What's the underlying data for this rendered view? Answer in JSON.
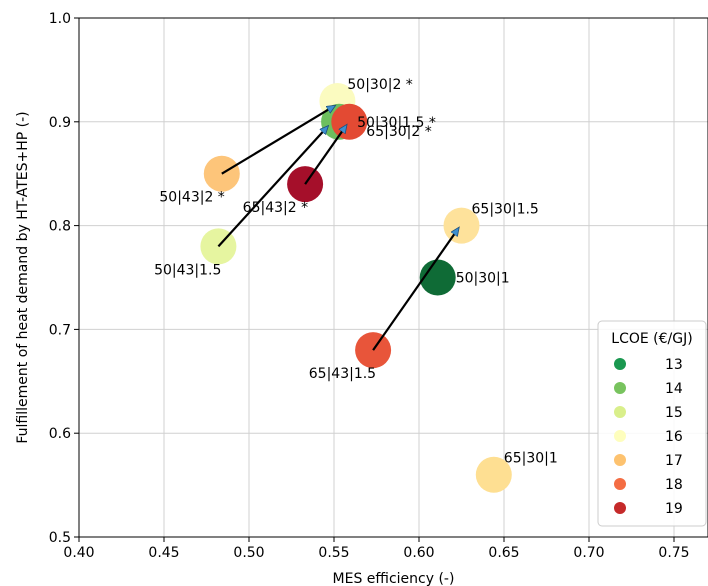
{
  "chart_data": {
    "type": "scatter",
    "xlabel": "MES efficiency (-)",
    "ylabel": "Fulfillement of heat demand by HT-ATES+HP (-)",
    "xlim": [
      0.4,
      0.77
    ],
    "ylim": [
      0.5,
      1.0
    ],
    "xticks": [
      0.4,
      0.45,
      0.5,
      0.55,
      0.6,
      0.65,
      0.7,
      0.75
    ],
    "yticks": [
      0.5,
      0.6,
      0.7,
      0.8,
      0.9,
      1.0
    ],
    "xtick_labels": [
      "0.40",
      "0.45",
      "0.50",
      "0.55",
      "0.60",
      "0.65",
      "0.70",
      "0.75"
    ],
    "ytick_labels": [
      "0.5",
      "0.6",
      "0.7",
      "0.8",
      "0.9",
      "1.0"
    ],
    "grid": true,
    "legend": {
      "title": "LCOE (€/GJ)",
      "placement": "lower-right",
      "entries": [
        {
          "label": "13",
          "color": "#1a9850"
        },
        {
          "label": "14",
          "color": "#78c35e"
        },
        {
          "label": "15",
          "color": "#d9ef8b"
        },
        {
          "label": "16",
          "color": "#fefebd"
        },
        {
          "label": "17",
          "color": "#fdc26f"
        },
        {
          "label": "18",
          "color": "#f46d43"
        },
        {
          "label": "19",
          "color": "#c52a2a"
        }
      ]
    },
    "points": [
      {
        "label": "50|43|2 *",
        "x": 0.484,
        "y": 0.85,
        "lcoe": 17,
        "color": "#fdc57a",
        "label_pos": "below-left"
      },
      {
        "label": "50|43|1.5",
        "x": 0.482,
        "y": 0.78,
        "lcoe": 15,
        "color": "#e6f5a0",
        "label_pos": "below-left"
      },
      {
        "label": "65|43|2 *",
        "x": 0.533,
        "y": 0.84,
        "lcoe": 19,
        "color": "#a50f2a",
        "label_pos": "below-left"
      },
      {
        "label": "50|30|2 *",
        "x": 0.552,
        "y": 0.92,
        "lcoe": 16,
        "color": "#fbfbc0",
        "label_pos": "above-right"
      },
      {
        "label": "50|30|1.5 *",
        "x": 0.553,
        "y": 0.9,
        "lcoe": 14,
        "color": "#6dbf5e",
        "label_pos": "right"
      },
      {
        "label": "65|30|2 *",
        "x": 0.559,
        "y": 0.9,
        "lcoe": 18,
        "color": "#e34a33",
        "label_pos": "below-right"
      },
      {
        "label": "65|30|1.5",
        "x": 0.625,
        "y": 0.8,
        "lcoe": 17,
        "color": "#fee29b",
        "label_pos": "above-right"
      },
      {
        "label": "50|30|1",
        "x": 0.611,
        "y": 0.75,
        "lcoe": 13,
        "color": "#0f6b36",
        "label_pos": "right"
      },
      {
        "label": "65|43|1.5",
        "x": 0.573,
        "y": 0.68,
        "lcoe": 18,
        "color": "#e8553a",
        "label_pos": "below-left"
      },
      {
        "label": "65|30|1",
        "x": 0.644,
        "y": 0.56,
        "lcoe": 17,
        "color": "#fedf92",
        "label_pos": "above-right"
      }
    ],
    "arrows": [
      {
        "from": [
          0.484,
          0.85
        ],
        "to": [
          0.55,
          0.915
        ]
      },
      {
        "from": [
          0.482,
          0.78
        ],
        "to": [
          0.546,
          0.895
        ]
      },
      {
        "from": [
          0.533,
          0.84
        ],
        "to": [
          0.557,
          0.896
        ]
      },
      {
        "from": [
          0.573,
          0.68
        ],
        "to": [
          0.623,
          0.797
        ]
      }
    ]
  }
}
